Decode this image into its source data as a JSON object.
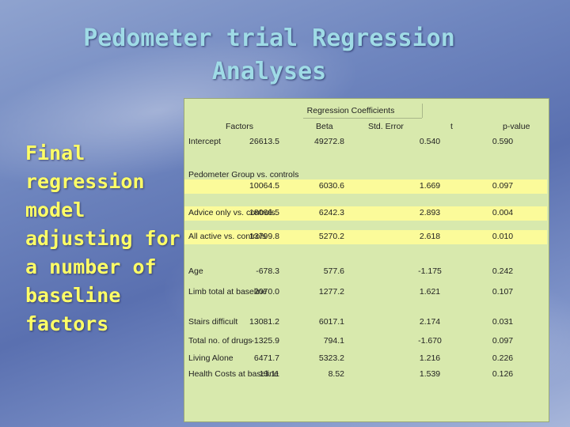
{
  "title": {
    "line1": "Pedometer trial Regression",
    "line2": "Analyses"
  },
  "side_text": [
    "Final",
    "regression",
    "model",
    "adjusting for",
    "a number of",
    "baseline",
    "factors"
  ],
  "table": {
    "group_header": "Regression Coefficients",
    "columns": {
      "factors": "Factors",
      "beta": "Beta",
      "se": "Std. Error",
      "t": "t",
      "p": "p-value"
    },
    "rows": [
      {
        "factor": "Intercept",
        "beta": "26613.5",
        "se": "49272.8",
        "t": "0.540",
        "p": "0.590",
        "highlight": false
      },
      {
        "factor": "Pedometer Group vs. controls",
        "beta": "10064.5",
        "se": "6030.6",
        "t": "1.669",
        "p": "0.097",
        "highlight": true
      },
      {
        "factor": "Advice only vs. controls",
        "beta": "18066.5",
        "se": "6242.3",
        "t": "2.893",
        "p": "0.004",
        "highlight": true
      },
      {
        "factor": "All active vs. controls",
        "beta": "13799.8",
        "se": "5270.2",
        "t": "2.618",
        "p": "0.010",
        "highlight": true
      },
      {
        "factor": "Age",
        "beta": "-678.3",
        "se": "577.6",
        "t": "-1.175",
        "p": "0.242",
        "highlight": false
      },
      {
        "factor": "Limb total at baseline",
        "beta": "2070.0",
        "se": "1277.2",
        "t": "1.621",
        "p": "0.107",
        "highlight": false
      },
      {
        "factor": "Stairs difficult",
        "beta": "13081.2",
        "se": "6017.1",
        "t": "2.174",
        "p": "0.031",
        "highlight": false
      },
      {
        "factor": "Total no. of drugs",
        "beta": "-1325.9",
        "se": "794.1",
        "t": "-1.670",
        "p": "0.097",
        "highlight": false
      },
      {
        "factor": "Living Alone",
        "beta": "6471.7",
        "se": "5323.2",
        "t": "1.216",
        "p": "0.226",
        "highlight": false
      },
      {
        "factor": "Health Costs at baseline",
        "beta": "13.11",
        "se": "8.52",
        "t": "1.539",
        "p": "0.126",
        "highlight": false
      }
    ]
  }
}
